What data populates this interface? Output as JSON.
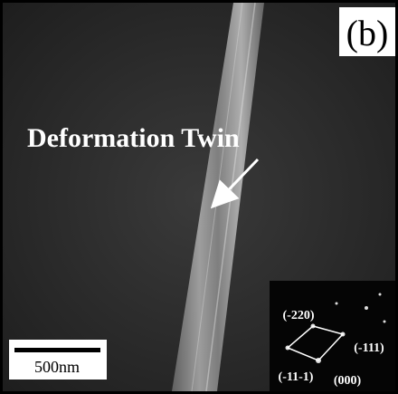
{
  "panel_label": "(b)",
  "annotation": {
    "label": "Deformation Twin"
  },
  "scale_bar": {
    "label": "500nm"
  },
  "inset": {
    "spots": [
      {
        "label": "(-220)"
      },
      {
        "label": "(-111)"
      },
      {
        "label": "(-11-1)"
      },
      {
        "label": "(000)"
      }
    ]
  }
}
